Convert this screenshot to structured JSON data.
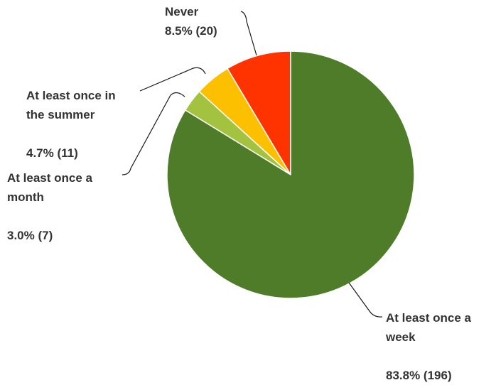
{
  "chart_data": {
    "type": "pie",
    "title": "",
    "legend": "none",
    "slices": [
      {
        "name": "Never",
        "percent": 8.5,
        "count": 20,
        "value_label": "8.5% (20)",
        "color": "#ff3300"
      },
      {
        "name": "At least once in the summer",
        "percent": 4.7,
        "count": 11,
        "value_label": "4.7% (11)",
        "color": "#fcc000"
      },
      {
        "name": "At least once a month",
        "percent": 3.0,
        "count": 7,
        "value_label": "3.0% (7)",
        "color": "#a3c240"
      },
      {
        "name": "At least once a week",
        "percent": 83.8,
        "count": 196,
        "value_label": "83.8% (196)",
        "color": "#4e7c28"
      }
    ],
    "labels": {
      "never": {
        "line1": "Never",
        "value": "8.5% (20)"
      },
      "summer": {
        "line1": "At least once in",
        "line2": "the summer",
        "value": "4.7% (11)"
      },
      "month": {
        "line1": "At least once a",
        "line2": "month",
        "value": "3.0% (7)"
      },
      "week": {
        "line1": "At least once a",
        "line2": "week",
        "value": "83.8% (196)"
      }
    }
  }
}
